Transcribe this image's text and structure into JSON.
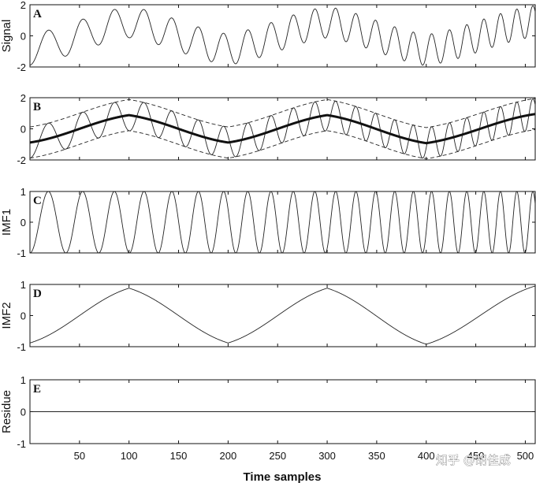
{
  "chart_data": {
    "type": "line",
    "title": "",
    "xlabel": "Time samples",
    "xlim": [
      0,
      510
    ],
    "xticks": [
      50,
      100,
      150,
      200,
      250,
      300,
      350,
      400,
      450,
      500
    ],
    "watermark": "知乎 @胡佳成",
    "panels": [
      {
        "letter": "A",
        "ylabel": "Signal",
        "ylim": [
          -2,
          2
        ],
        "yticks": [
          -2,
          0,
          2
        ],
        "ytick_labels": [
          "-2",
          "0",
          "2"
        ],
        "series": [
          {
            "name": "signal",
            "style": "thin-solid",
            "description": "sum of chirp (IMF1) and triangle trend (IMF2)"
          }
        ]
      },
      {
        "letter": "B",
        "ylabel": "",
        "ylim": [
          -2,
          2
        ],
        "yticks": [
          -2,
          0,
          2
        ],
        "ytick_labels": [
          "-2",
          "0",
          "2"
        ],
        "series": [
          {
            "name": "signal",
            "style": "thin-solid"
          },
          {
            "name": "upper envelope",
            "style": "dashed"
          },
          {
            "name": "lower envelope",
            "style": "dashed"
          },
          {
            "name": "envelope mean",
            "style": "thick-solid"
          }
        ]
      },
      {
        "letter": "C",
        "ylabel": "IMF1",
        "ylim": [
          -1,
          1
        ],
        "yticks": [
          -1,
          0,
          1
        ],
        "ytick_labels": [
          "-1",
          "0",
          "1"
        ],
        "series": [
          {
            "name": "IMF1",
            "style": "thin-solid",
            "amplitude": 1,
            "period_start": 38,
            "period_end": 16
          }
        ]
      },
      {
        "letter": "D",
        "ylabel": "IMF2",
        "ylim": [
          -1,
          1
        ],
        "yticks": [
          -1,
          0,
          1
        ],
        "ytick_labels": [
          "-1",
          "0",
          "1"
        ],
        "series": [
          {
            "name": "IMF2",
            "style": "thin-solid",
            "knots_x": [
              0,
              100,
              200,
              300,
              400,
              510
            ],
            "knots_y": [
              -0.88,
              0.88,
              -0.88,
              0.88,
              -0.92,
              0.95
            ]
          }
        ]
      },
      {
        "letter": "E",
        "ylabel": "Residue",
        "ylim": [
          -1,
          1
        ],
        "yticks": [
          -1,
          0,
          1
        ],
        "ytick_labels": [
          "-1",
          "0",
          "1"
        ],
        "series": [
          {
            "name": "residue",
            "style": "thin-solid",
            "constant": 0
          }
        ]
      }
    ]
  }
}
